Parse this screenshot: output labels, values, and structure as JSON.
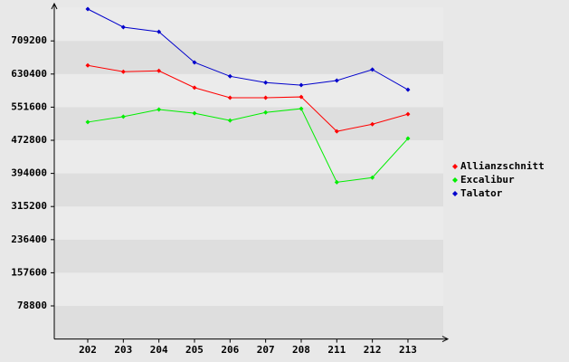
{
  "chart_data": {
    "type": "line",
    "categories": [
      "202",
      "203",
      "204",
      "205",
      "206",
      "207",
      "208",
      "211",
      "212",
      "213"
    ],
    "series": [
      {
        "name": "Allianzschnitt",
        "color": "#ff0000",
        "values": [
          651000,
          636000,
          638000,
          598000,
          574000,
          574000,
          576000,
          494000,
          511000,
          535000
        ]
      },
      {
        "name": "Excalibur",
        "color": "#00ee00",
        "values": [
          516000,
          529000,
          546000,
          537000,
          520000,
          539000,
          548000,
          373000,
          384000,
          477000
        ]
      },
      {
        "name": "Talator",
        "color": "#0000cc",
        "values": [
          785000,
          742000,
          731000,
          658000,
          625000,
          610000,
          604000,
          615000,
          641000,
          593000
        ]
      }
    ],
    "ylim": [
      0,
      788000
    ],
    "yticks": [
      78800,
      157600,
      236400,
      315200,
      394000,
      472800,
      551600,
      630400,
      709200
    ],
    "legend": "right"
  }
}
